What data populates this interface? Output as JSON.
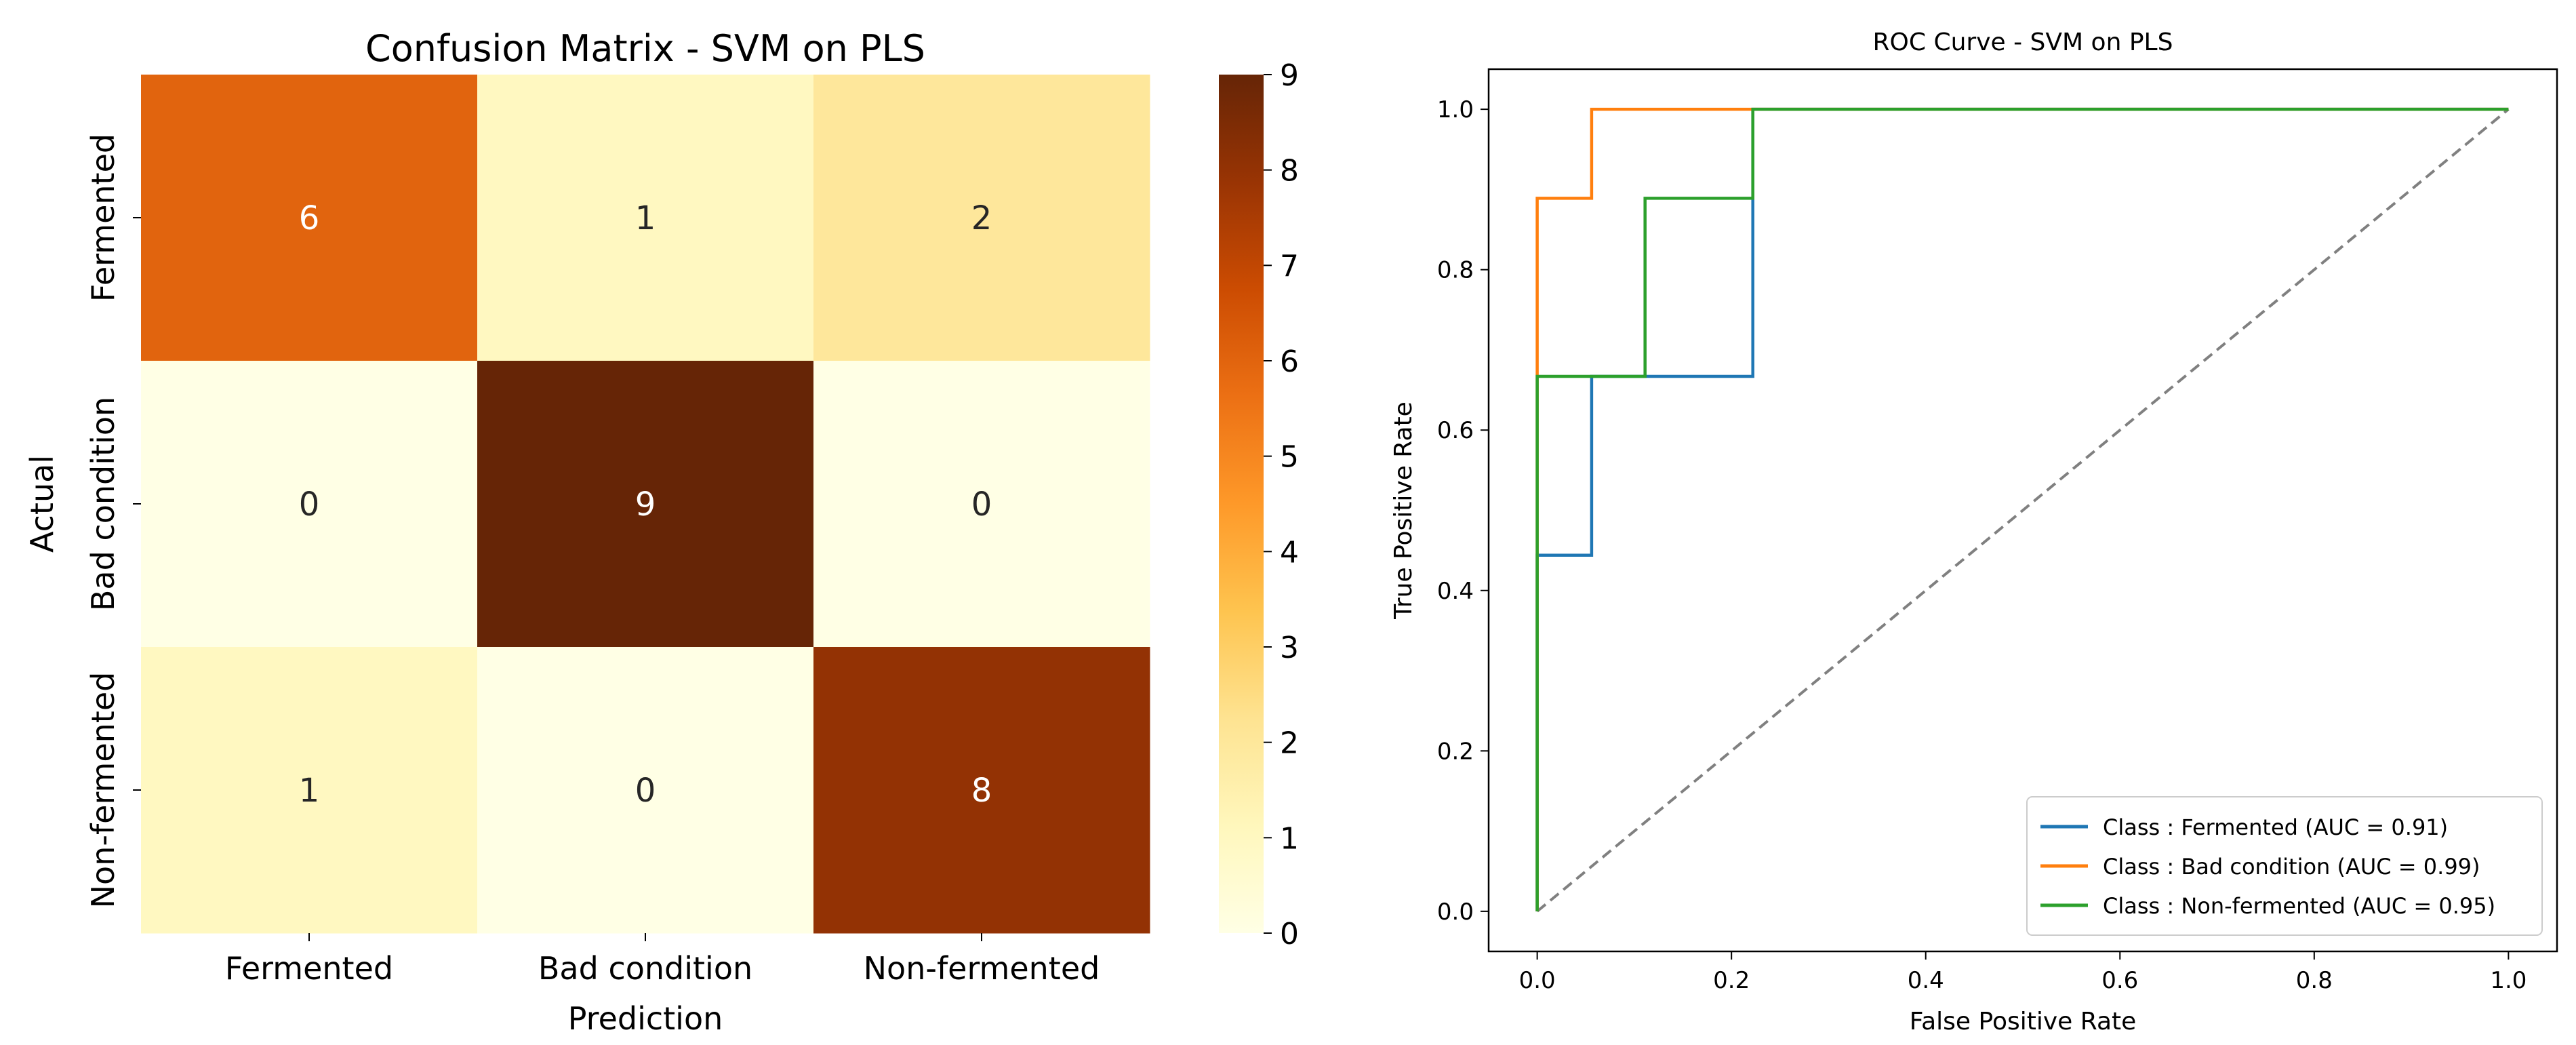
{
  "chart_data": [
    {
      "type": "heatmap",
      "title": "Confusion Matrix - SVM on PLS",
      "xlabel": "Prediction",
      "ylabel": "Actual",
      "x_categories": [
        "Fermented",
        "Bad condition",
        "Non-fermented"
      ],
      "y_categories": [
        "Fermented",
        "Bad condition",
        "Non-fermented"
      ],
      "values": [
        [
          6,
          1,
          2
        ],
        [
          0,
          9,
          0
        ],
        [
          1,
          0,
          8
        ]
      ],
      "colorbar": {
        "range": [
          0,
          9
        ],
        "ticks": [
          0,
          1,
          2,
          3,
          4,
          5,
          6,
          7,
          8,
          9
        ],
        "colormap": "YlOrBr"
      }
    },
    {
      "type": "line",
      "title": "ROC Curve - SVM on PLS",
      "xlabel": "False Positive Rate",
      "ylabel": "True Positive Rate",
      "xlim": [
        -0.05,
        1.05
      ],
      "ylim": [
        -0.05,
        1.05
      ],
      "x_ticks": [
        "0.0",
        "0.2",
        "0.4",
        "0.6",
        "0.8",
        "1.0"
      ],
      "y_ticks": [
        "0.0",
        "0.2",
        "0.4",
        "0.6",
        "0.8",
        "1.0"
      ],
      "grid": false,
      "legend_position": "lower-right",
      "series": [
        {
          "name": "Class : Fermented (AUC = 0.91)",
          "color": "#1f77b4",
          "points": [
            [
              0,
              0
            ],
            [
              0,
              0.444
            ],
            [
              0.056,
              0.444
            ],
            [
              0.056,
              0.667
            ],
            [
              0.222,
              0.667
            ],
            [
              0.222,
              1.0
            ],
            [
              1.0,
              1.0
            ]
          ]
        },
        {
          "name": "Class : Bad condition (AUC = 0.99)",
          "color": "#ff7f0e",
          "points": [
            [
              0,
              0
            ],
            [
              0,
              0.889
            ],
            [
              0.056,
              0.889
            ],
            [
              0.056,
              1.0
            ],
            [
              1.0,
              1.0
            ]
          ]
        },
        {
          "name": "Class : Non-fermented (AUC = 0.95)",
          "color": "#2ca02c",
          "points": [
            [
              0,
              0
            ],
            [
              0,
              0.667
            ],
            [
              0.111,
              0.667
            ],
            [
              0.111,
              0.889
            ],
            [
              0.222,
              0.889
            ],
            [
              0.222,
              1.0
            ],
            [
              1.0,
              1.0
            ]
          ]
        }
      ],
      "reference_line": {
        "color": "#808080",
        "points": [
          [
            0,
            0
          ],
          [
            1,
            1
          ]
        ]
      }
    }
  ]
}
